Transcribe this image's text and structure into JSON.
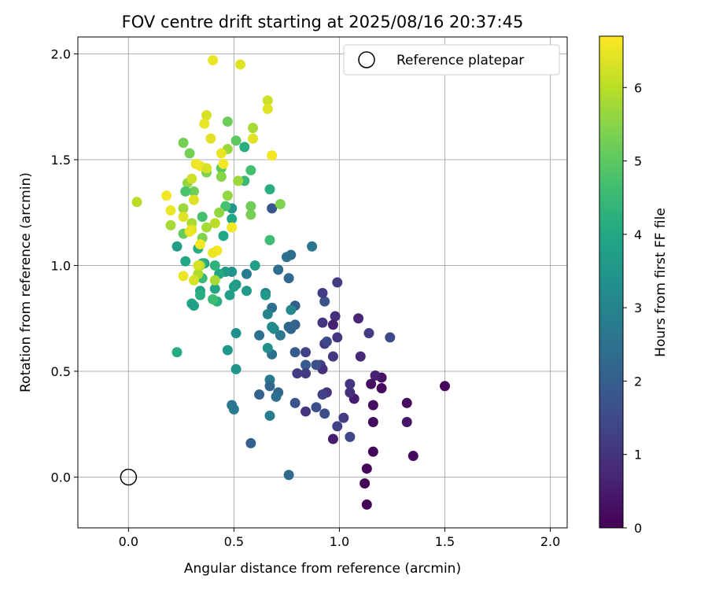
{
  "chart_data": {
    "type": "scatter",
    "title": "FOV centre drift starting at 2025/08/16 20:37:45",
    "xlabel": "Angular distance from reference (arcmin)",
    "ylabel": "Rotation from reference (arcmin)",
    "xlim": [
      -0.24,
      2.08
    ],
    "ylim": [
      -0.24,
      2.08
    ],
    "xticks": [
      "0.0",
      "0.5",
      "1.0",
      "1.5",
      "2.0"
    ],
    "yticks": [
      "0.0",
      "0.5",
      "1.0",
      "1.5",
      "2.0"
    ],
    "grid": true,
    "legend": {
      "position": "top-right",
      "label": "Reference platepar"
    },
    "reference_point": {
      "x": 0.0,
      "y": 0.0
    },
    "colorbar": {
      "label": "Hours from first FF file",
      "min": 0,
      "max": 6.7,
      "ticks": [
        "0",
        "1",
        "2",
        "3",
        "4",
        "5",
        "6"
      ],
      "colormap": "viridis"
    },
    "points": [
      {
        "x": 1.5,
        "y": 0.43,
        "h": 0.1
      },
      {
        "x": 1.35,
        "y": 0.1,
        "h": 0.2
      },
      {
        "x": 1.32,
        "y": 0.35,
        "h": 0.2
      },
      {
        "x": 1.32,
        "y": 0.26,
        "h": 0.4
      },
      {
        "x": 1.2,
        "y": 0.47,
        "h": 0.3
      },
      {
        "x": 1.2,
        "y": 0.42,
        "h": 0.2
      },
      {
        "x": 1.17,
        "y": 0.48,
        "h": 0.6
      },
      {
        "x": 1.16,
        "y": 0.34,
        "h": 0.3
      },
      {
        "x": 1.16,
        "y": 0.12,
        "h": 0.1
      },
      {
        "x": 1.16,
        "y": 0.26,
        "h": 0.2
      },
      {
        "x": 1.15,
        "y": 0.44,
        "h": 0.2
      },
      {
        "x": 1.13,
        "y": 0.04,
        "h": 0.1
      },
      {
        "x": 1.12,
        "y": -0.03,
        "h": 0.05
      },
      {
        "x": 1.13,
        "y": -0.13,
        "h": 0.1
      },
      {
        "x": 1.1,
        "y": 0.57,
        "h": 0.8
      },
      {
        "x": 1.09,
        "y": 0.75,
        "h": 0.7
      },
      {
        "x": 1.14,
        "y": 0.68,
        "h": 1.2
      },
      {
        "x": 1.24,
        "y": 0.66,
        "h": 1.5
      },
      {
        "x": 1.07,
        "y": 0.37,
        "h": 0.5
      },
      {
        "x": 1.05,
        "y": 0.44,
        "h": 1.0
      },
      {
        "x": 1.05,
        "y": 0.4,
        "h": 0.9
      },
      {
        "x": 1.05,
        "y": 0.19,
        "h": 1.4
      },
      {
        "x": 1.02,
        "y": 0.28,
        "h": 1.2
      },
      {
        "x": 0.99,
        "y": 0.24,
        "h": 1.3
      },
      {
        "x": 0.97,
        "y": 0.18,
        "h": 0.5
      },
      {
        "x": 0.99,
        "y": 0.92,
        "h": 1.2
      },
      {
        "x": 0.98,
        "y": 0.76,
        "h": 0.9
      },
      {
        "x": 0.97,
        "y": 0.72,
        "h": 0.6
      },
      {
        "x": 0.99,
        "y": 0.66,
        "h": 1.0
      },
      {
        "x": 0.97,
        "y": 0.57,
        "h": 1.1
      },
      {
        "x": 0.93,
        "y": 0.83,
        "h": 1.7
      },
      {
        "x": 0.92,
        "y": 0.87,
        "h": 1.2
      },
      {
        "x": 0.92,
        "y": 0.73,
        "h": 1.0
      },
      {
        "x": 0.93,
        "y": 0.63,
        "h": 1.1
      },
      {
        "x": 0.94,
        "y": 0.64,
        "h": 1.5
      },
      {
        "x": 0.91,
        "y": 0.53,
        "h": 1.3
      },
      {
        "x": 0.92,
        "y": 0.51,
        "h": 0.9
      },
      {
        "x": 0.94,
        "y": 0.4,
        "h": 1.0
      },
      {
        "x": 0.92,
        "y": 0.39,
        "h": 1.3
      },
      {
        "x": 0.93,
        "y": 0.3,
        "h": 1.6
      },
      {
        "x": 0.89,
        "y": 0.53,
        "h": 1.6
      },
      {
        "x": 0.89,
        "y": 0.33,
        "h": 1.6
      },
      {
        "x": 0.84,
        "y": 0.59,
        "h": 1.3
      },
      {
        "x": 0.84,
        "y": 0.53,
        "h": 1.9
      },
      {
        "x": 0.84,
        "y": 0.49,
        "h": 1.2
      },
      {
        "x": 0.84,
        "y": 0.31,
        "h": 1.0
      },
      {
        "x": 0.87,
        "y": 1.09,
        "h": 2.6
      },
      {
        "x": 0.79,
        "y": 0.81,
        "h": 2.0
      },
      {
        "x": 0.79,
        "y": 0.72,
        "h": 2.1
      },
      {
        "x": 0.79,
        "y": 0.59,
        "h": 1.9
      },
      {
        "x": 0.8,
        "y": 0.49,
        "h": 1.2
      },
      {
        "x": 0.79,
        "y": 0.35,
        "h": 1.7
      },
      {
        "x": 0.77,
        "y": 1.05,
        "h": 2.4
      },
      {
        "x": 0.75,
        "y": 1.04,
        "h": 2.5
      },
      {
        "x": 0.76,
        "y": 0.94,
        "h": 2.3
      },
      {
        "x": 0.77,
        "y": 0.79,
        "h": 3.1
      },
      {
        "x": 0.76,
        "y": 0.71,
        "h": 2.2
      },
      {
        "x": 0.77,
        "y": 0.7,
        "h": 2.2
      },
      {
        "x": 0.76,
        "y": 0.01,
        "h": 2.3
      },
      {
        "x": 0.71,
        "y": 0.98,
        "h": 2.4
      },
      {
        "x": 0.72,
        "y": 0.67,
        "h": 2.7
      },
      {
        "x": 0.71,
        "y": 0.4,
        "h": 2.2
      },
      {
        "x": 0.7,
        "y": 0.38,
        "h": 2.5
      },
      {
        "x": 0.69,
        "y": 0.7,
        "h": 3.1
      },
      {
        "x": 0.68,
        "y": 1.27,
        "h": 1.8
      },
      {
        "x": 0.68,
        "y": 0.8,
        "h": 2.4
      },
      {
        "x": 0.68,
        "y": 0.71,
        "h": 3.2
      },
      {
        "x": 0.68,
        "y": 0.58,
        "h": 2.5
      },
      {
        "x": 0.67,
        "y": 0.46,
        "h": 2.7
      },
      {
        "x": 0.67,
        "y": 0.43,
        "h": 2.2
      },
      {
        "x": 0.67,
        "y": 0.29,
        "h": 2.8
      },
      {
        "x": 0.66,
        "y": 0.77,
        "h": 3.0
      },
      {
        "x": 0.66,
        "y": 0.61,
        "h": 3.3
      },
      {
        "x": 0.65,
        "y": 0.87,
        "h": 2.8
      },
      {
        "x": 0.65,
        "y": 0.86,
        "h": 3.6
      },
      {
        "x": 0.62,
        "y": 0.67,
        "h": 2.5
      },
      {
        "x": 0.62,
        "y": 0.39,
        "h": 2.1
      },
      {
        "x": 0.6,
        "y": 1.0,
        "h": 3.7
      },
      {
        "x": 0.58,
        "y": 0.16,
        "h": 2.1
      },
      {
        "x": 0.56,
        "y": 0.96,
        "h": 2.8
      },
      {
        "x": 0.56,
        "y": 0.88,
        "h": 3.6
      },
      {
        "x": 0.51,
        "y": 0.68,
        "h": 3.3
      },
      {
        "x": 0.51,
        "y": 0.51,
        "h": 3.5
      },
      {
        "x": 0.5,
        "y": 0.32,
        "h": 2.7
      },
      {
        "x": 0.49,
        "y": 0.34,
        "h": 2.6
      },
      {
        "x": 0.51,
        "y": 0.91,
        "h": 3.6
      },
      {
        "x": 0.5,
        "y": 0.9,
        "h": 3.7
      },
      {
        "x": 0.49,
        "y": 0.97,
        "h": 3.4
      },
      {
        "x": 0.48,
        "y": 0.86,
        "h": 3.8
      },
      {
        "x": 0.47,
        "y": 0.6,
        "h": 3.5
      },
      {
        "x": 0.49,
        "y": 1.27,
        "h": 3.5
      },
      {
        "x": 0.49,
        "y": 1.22,
        "h": 4.0
      },
      {
        "x": 0.46,
        "y": 0.97,
        "h": 3.6
      },
      {
        "x": 0.45,
        "y": 1.14,
        "h": 4.0
      },
      {
        "x": 0.43,
        "y": 0.96,
        "h": 4.0
      },
      {
        "x": 0.42,
        "y": 0.83,
        "h": 4.2
      },
      {
        "x": 0.41,
        "y": 0.89,
        "h": 3.9
      },
      {
        "x": 0.41,
        "y": 1.0,
        "h": 4.3
      },
      {
        "x": 0.4,
        "y": 0.84,
        "h": 4.6
      },
      {
        "x": 0.36,
        "y": 1.01,
        "h": 3.8
      },
      {
        "x": 0.35,
        "y": 1.01,
        "h": 4.2
      },
      {
        "x": 0.35,
        "y": 0.94,
        "h": 4.5
      },
      {
        "x": 0.34,
        "y": 0.88,
        "h": 3.9
      },
      {
        "x": 0.34,
        "y": 0.86,
        "h": 4.2
      },
      {
        "x": 0.33,
        "y": 1.08,
        "h": 4.1
      },
      {
        "x": 0.3,
        "y": 0.82,
        "h": 4.0
      },
      {
        "x": 0.31,
        "y": 0.81,
        "h": 3.8
      },
      {
        "x": 0.27,
        "y": 1.02,
        "h": 4.0
      },
      {
        "x": 0.23,
        "y": 1.09,
        "h": 3.7
      },
      {
        "x": 0.23,
        "y": 0.59,
        "h": 4.1
      },
      {
        "x": 0.72,
        "y": 1.29,
        "h": 5.4
      },
      {
        "x": 0.67,
        "y": 1.36,
        "h": 4.2
      },
      {
        "x": 0.67,
        "y": 1.12,
        "h": 4.6
      },
      {
        "x": 0.58,
        "y": 1.45,
        "h": 4.7
      },
      {
        "x": 0.58,
        "y": 1.28,
        "h": 5.2
      },
      {
        "x": 0.58,
        "y": 1.24,
        "h": 5.3
      },
      {
        "x": 0.55,
        "y": 1.56,
        "h": 4.2
      },
      {
        "x": 0.55,
        "y": 1.4,
        "h": 4.5
      },
      {
        "x": 0.51,
        "y": 1.59,
        "h": 5.0
      },
      {
        "x": 0.52,
        "y": 1.4,
        "h": 5.7
      },
      {
        "x": 0.47,
        "y": 1.68,
        "h": 5.2
      },
      {
        "x": 0.47,
        "y": 1.55,
        "h": 5.7
      },
      {
        "x": 0.47,
        "y": 1.33,
        "h": 5.6
      },
      {
        "x": 0.46,
        "y": 1.28,
        "h": 4.7
      },
      {
        "x": 0.44,
        "y": 1.46,
        "h": 5.0
      },
      {
        "x": 0.44,
        "y": 1.42,
        "h": 5.5
      },
      {
        "x": 0.43,
        "y": 1.25,
        "h": 5.6
      },
      {
        "x": 0.41,
        "y": 1.2,
        "h": 6.0
      },
      {
        "x": 0.41,
        "y": 0.93,
        "h": 5.8
      },
      {
        "x": 0.37,
        "y": 1.44,
        "h": 5.4
      },
      {
        "x": 0.37,
        "y": 1.18,
        "h": 5.8
      },
      {
        "x": 0.35,
        "y": 1.23,
        "h": 4.7
      },
      {
        "x": 0.35,
        "y": 1.13,
        "h": 5.4
      },
      {
        "x": 0.34,
        "y": 1.0,
        "h": 5.8
      },
      {
        "x": 0.33,
        "y": 0.96,
        "h": 5.9
      },
      {
        "x": 0.31,
        "y": 1.35,
        "h": 5.2
      },
      {
        "x": 0.3,
        "y": 1.2,
        "h": 5.8
      },
      {
        "x": 0.29,
        "y": 1.53,
        "h": 5.3
      },
      {
        "x": 0.28,
        "y": 1.39,
        "h": 5.6
      },
      {
        "x": 0.27,
        "y": 1.35,
        "h": 4.8
      },
      {
        "x": 0.26,
        "y": 1.58,
        "h": 5.3
      },
      {
        "x": 0.26,
        "y": 1.27,
        "h": 5.7
      },
      {
        "x": 0.26,
        "y": 1.15,
        "h": 5.1
      },
      {
        "x": 0.2,
        "y": 1.19,
        "h": 5.8
      },
      {
        "x": 0.04,
        "y": 1.3,
        "h": 6.0
      },
      {
        "x": 0.4,
        "y": 1.97,
        "h": 6.5
      },
      {
        "x": 0.53,
        "y": 1.95,
        "h": 6.4
      },
      {
        "x": 0.66,
        "y": 1.78,
        "h": 6.2
      },
      {
        "x": 0.66,
        "y": 1.74,
        "h": 6.4
      },
      {
        "x": 0.59,
        "y": 1.65,
        "h": 5.8
      },
      {
        "x": 0.59,
        "y": 1.6,
        "h": 6.4
      },
      {
        "x": 0.68,
        "y": 1.52,
        "h": 6.6
      },
      {
        "x": 0.37,
        "y": 1.71,
        "h": 6.3
      },
      {
        "x": 0.36,
        "y": 1.67,
        "h": 6.5
      },
      {
        "x": 0.39,
        "y": 1.6,
        "h": 6.4
      },
      {
        "x": 0.44,
        "y": 1.53,
        "h": 6.5
      },
      {
        "x": 0.45,
        "y": 1.48,
        "h": 6.6
      },
      {
        "x": 0.32,
        "y": 1.48,
        "h": 6.5
      },
      {
        "x": 0.34,
        "y": 1.47,
        "h": 6.6
      },
      {
        "x": 0.37,
        "y": 1.46,
        "h": 6.3
      },
      {
        "x": 0.3,
        "y": 1.41,
        "h": 6.2
      },
      {
        "x": 0.31,
        "y": 1.31,
        "h": 6.4
      },
      {
        "x": 0.18,
        "y": 1.33,
        "h": 6.6
      },
      {
        "x": 0.2,
        "y": 1.26,
        "h": 6.5
      },
      {
        "x": 0.26,
        "y": 1.23,
        "h": 6.4
      },
      {
        "x": 0.3,
        "y": 1.17,
        "h": 6.4
      },
      {
        "x": 0.29,
        "y": 1.16,
        "h": 6.5
      },
      {
        "x": 0.49,
        "y": 1.18,
        "h": 6.6
      },
      {
        "x": 0.42,
        "y": 1.07,
        "h": 6.6
      },
      {
        "x": 0.4,
        "y": 1.06,
        "h": 6.5
      },
      {
        "x": 0.34,
        "y": 1.1,
        "h": 6.6
      },
      {
        "x": 0.33,
        "y": 1.0,
        "h": 6.3
      },
      {
        "x": 0.26,
        "y": 0.95,
        "h": 6.5
      },
      {
        "x": 0.31,
        "y": 0.93,
        "h": 6.3
      }
    ]
  }
}
